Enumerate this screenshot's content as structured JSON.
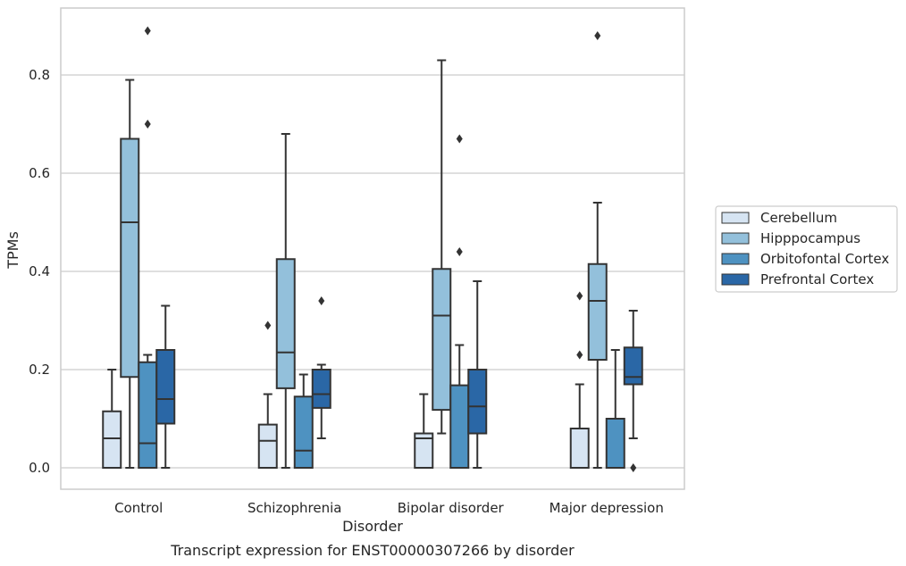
{
  "chart_data": {
    "type": "boxplot",
    "caption": "Transcript expression for ENST00000307266 by disorder",
    "xlabel": "Disorder",
    "ylabel": "TPMs",
    "ylim": [
      -0.04,
      0.94
    ],
    "yticks": [
      0.0,
      0.2,
      0.4,
      0.6,
      0.8
    ],
    "ytick_labels": [
      "0.0",
      "0.2",
      "0.4",
      "0.6",
      "0.8"
    ],
    "grid": "horizontal",
    "legend_position": "right",
    "categories": [
      "Control",
      "Schizophrenia",
      "Bipolar disorder",
      "Major depression"
    ],
    "series": [
      {
        "name": "Cerebellum",
        "color": "#d6e4f2",
        "boxes": [
          {
            "whislo": 0.0,
            "q1": 0.0,
            "med": 0.06,
            "q3": 0.115,
            "whishi": 0.2,
            "fliers": []
          },
          {
            "whislo": 0.0,
            "q1": 0.0,
            "med": 0.055,
            "q3": 0.088,
            "whishi": 0.15,
            "fliers": [
              0.29
            ]
          },
          {
            "whislo": 0.0,
            "q1": 0.0,
            "med": 0.06,
            "q3": 0.07,
            "whishi": 0.15,
            "fliers": []
          },
          {
            "whislo": 0.0,
            "q1": 0.0,
            "med": 0.0,
            "q3": 0.08,
            "whishi": 0.17,
            "fliers": [
              0.23,
              0.35
            ]
          }
        ]
      },
      {
        "name": "Hipppocampus",
        "color": "#93c0db",
        "boxes": [
          {
            "whislo": 0.0,
            "q1": 0.185,
            "med": 0.5,
            "q3": 0.67,
            "whishi": 0.79,
            "fliers": []
          },
          {
            "whislo": 0.0,
            "q1": 0.162,
            "med": 0.235,
            "q3": 0.425,
            "whishi": 0.68,
            "fliers": []
          },
          {
            "whislo": 0.07,
            "q1": 0.118,
            "med": 0.31,
            "q3": 0.405,
            "whishi": 0.83,
            "fliers": []
          },
          {
            "whislo": 0.0,
            "q1": 0.22,
            "med": 0.34,
            "q3": 0.415,
            "whishi": 0.54,
            "fliers": [
              0.88
            ]
          }
        ]
      },
      {
        "name": "Orbitofontal Cortex",
        "color": "#4e92c1",
        "boxes": [
          {
            "whislo": 0.0,
            "q1": 0.0,
            "med": 0.05,
            "q3": 0.215,
            "whishi": 0.23,
            "fliers": [
              0.7,
              0.89
            ]
          },
          {
            "whislo": 0.0,
            "q1": 0.0,
            "med": 0.035,
            "q3": 0.145,
            "whishi": 0.19,
            "fliers": []
          },
          {
            "whislo": 0.0,
            "q1": 0.0,
            "med": 0.0,
            "q3": 0.168,
            "whishi": 0.25,
            "fliers": [
              0.44,
              0.67
            ]
          },
          {
            "whislo": 0.0,
            "q1": 0.0,
            "med": 0.0,
            "q3": 0.1,
            "whishi": 0.24,
            "fliers": []
          }
        ]
      },
      {
        "name": "Prefrontal Cortex",
        "color": "#2a67a6",
        "boxes": [
          {
            "whislo": 0.0,
            "q1": 0.09,
            "med": 0.14,
            "q3": 0.24,
            "whishi": 0.33,
            "fliers": []
          },
          {
            "whislo": 0.06,
            "q1": 0.122,
            "med": 0.15,
            "q3": 0.2,
            "whishi": 0.21,
            "fliers": [
              0.34
            ]
          },
          {
            "whislo": 0.0,
            "q1": 0.07,
            "med": 0.125,
            "q3": 0.2,
            "whishi": 0.38,
            "fliers": []
          },
          {
            "whislo": 0.06,
            "q1": 0.17,
            "med": 0.185,
            "q3": 0.245,
            "whishi": 0.32,
            "fliers": [
              0.0
            ]
          }
        ]
      }
    ]
  }
}
